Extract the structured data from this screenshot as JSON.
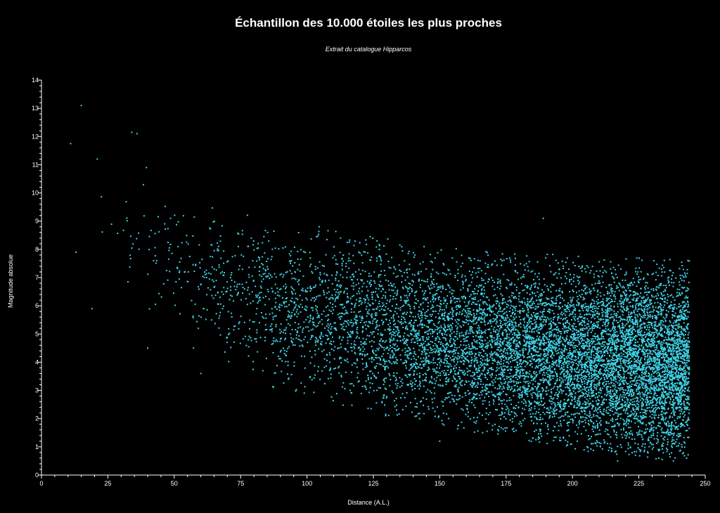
{
  "chart_data": {
    "type": "scatter",
    "title": "Échantillon des 10.000 étoiles les plus proches",
    "subtitle": "Extrait du catalogue Hipparcos",
    "xlabel": "Distance (A.L.)",
    "ylabel": "Magnitude absolue",
    "xlim": [
      0,
      250
    ],
    "ylim": [
      0,
      14
    ],
    "x_ticks": [
      "0",
      "25",
      "50",
      "75",
      "100",
      "125",
      "150",
      "175",
      "200",
      "225",
      "250"
    ],
    "y_ticks": [
      "0",
      "1",
      "2",
      "3",
      "4",
      "5",
      "6",
      "7",
      "8",
      "9",
      "10",
      "11",
      "12",
      "13",
      "14"
    ],
    "grid": false,
    "background_color": "#000000",
    "point_color": "#3fd2e6",
    "text_color": "#ffffff",
    "series": [
      {
        "distribution": {
          "count": 10000,
          "x_range": [
            10.5,
            244
          ],
          "upper_envelope": [
            [
              10.5,
              11.8
            ],
            [
              25,
              10.8
            ],
            [
              50,
              9.8
            ],
            [
              75,
              9.0
            ],
            [
              100,
              8.6
            ],
            [
              125,
              8.2
            ],
            [
              150,
              7.8
            ],
            [
              175,
              7.6
            ],
            [
              200,
              7.5
            ],
            [
              225,
              7.4
            ],
            [
              244,
              7.3
            ]
          ],
          "lower_envelope": [
            [
              10.5,
              9.0
            ],
            [
              25,
              7.0
            ],
            [
              50,
              5.0
            ],
            [
              75,
              3.8
            ],
            [
              100,
              3.0
            ],
            [
              125,
              2.4
            ],
            [
              150,
              2.0
            ],
            [
              175,
              1.6
            ],
            [
              200,
              1.2
            ],
            [
              225,
              0.9
            ],
            [
              244,
              0.8
            ]
          ],
          "density_center": [
            [
              25,
              9.0
            ],
            [
              50,
              7.5
            ],
            [
              75,
              6.5
            ],
            [
              100,
              5.8
            ],
            [
              125,
              5.3
            ],
            [
              150,
              4.9
            ],
            [
              175,
              4.5
            ],
            [
              200,
              4.2
            ],
            [
              225,
              4.0
            ],
            [
              244,
              3.9
            ]
          ]
        },
        "outliers": [
          {
            "x": 15,
            "y": 13.1
          },
          {
            "x": 34,
            "y": 12.15
          },
          {
            "x": 36,
            "y": 12.1
          },
          {
            "x": 11,
            "y": 11.75
          },
          {
            "x": 21,
            "y": 11.2
          },
          {
            "x": 39.5,
            "y": 10.9
          },
          {
            "x": 189,
            "y": 9.1
          },
          {
            "x": 13,
            "y": 7.9
          },
          {
            "x": 19,
            "y": 5.9
          },
          {
            "x": 40,
            "y": 4.5
          },
          {
            "x": 60,
            "y": 3.6
          },
          {
            "x": 150,
            "y": 1.2
          },
          {
            "x": 217,
            "y": 0.5
          },
          {
            "x": 238,
            "y": 0.5
          }
        ]
      }
    ]
  }
}
